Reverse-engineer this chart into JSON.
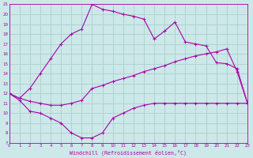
{
  "xlabel": "Windchill (Refroidissement éolien,°C)",
  "bg_color": "#cce8e8",
  "grid_color": "#aad0d0",
  "line_color": "#aa00aa",
  "xlim": [
    0,
    23
  ],
  "ylim": [
    7,
    21
  ],
  "xticks": [
    0,
    1,
    2,
    3,
    4,
    5,
    6,
    7,
    8,
    9,
    10,
    11,
    12,
    13,
    14,
    15,
    16,
    17,
    18,
    19,
    20,
    21,
    22,
    23
  ],
  "yticks": [
    7,
    8,
    9,
    10,
    11,
    12,
    13,
    14,
    15,
    16,
    17,
    18,
    19,
    20,
    21
  ],
  "line_upper_x": [
    0,
    1,
    2,
    3,
    4,
    5,
    6,
    7,
    8,
    9,
    10,
    11,
    12,
    13,
    14,
    15,
    16,
    17,
    18,
    19,
    20,
    21,
    22,
    23
  ],
  "line_upper_y": [
    12.0,
    11.5,
    12.5,
    14.0,
    15.5,
    17.0,
    18.0,
    18.5,
    21.0,
    20.5,
    20.3,
    20.0,
    19.8,
    19.5,
    17.5,
    18.3,
    19.2,
    17.2,
    17.0,
    16.8,
    15.1,
    15.0,
    14.5,
    11.0
  ],
  "line_mid_x": [
    0,
    1,
    2,
    3,
    4,
    5,
    6,
    7,
    8,
    9,
    10,
    11,
    12,
    13,
    14,
    15,
    16,
    17,
    18,
    19,
    20,
    21,
    22,
    23
  ],
  "line_mid_y": [
    12.0,
    11.5,
    11.2,
    11.0,
    10.8,
    10.8,
    11.0,
    11.3,
    12.5,
    12.8,
    13.2,
    13.5,
    13.8,
    14.2,
    14.5,
    14.8,
    15.2,
    15.5,
    15.8,
    16.0,
    16.2,
    16.5,
    14.2,
    11.0
  ],
  "line_lower_x": [
    0,
    1,
    2,
    3,
    4,
    5,
    6,
    7,
    8,
    9,
    10,
    11,
    12,
    13,
    14,
    15,
    16,
    17,
    18,
    19,
    20,
    21,
    22,
    23
  ],
  "line_lower_y": [
    12.0,
    11.3,
    10.2,
    10.0,
    9.5,
    9.0,
    8.0,
    7.5,
    7.5,
    8.0,
    9.5,
    10.0,
    10.5,
    10.8,
    11.0,
    11.0,
    11.0,
    11.0,
    11.0,
    11.0,
    11.0,
    11.0,
    11.0,
    11.0
  ]
}
